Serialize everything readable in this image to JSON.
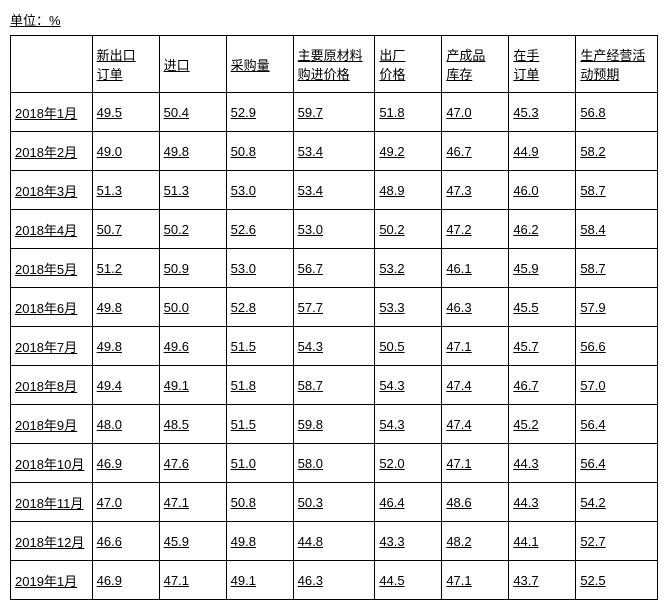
{
  "unit_label": "单位：%",
  "columns": [
    {
      "line1": "",
      "line2": ""
    },
    {
      "line1": "新出口",
      "line2": "订单"
    },
    {
      "line1": "进口",
      "line2": ""
    },
    {
      "line1": "采购量",
      "line2": ""
    },
    {
      "line1": "主要原材料",
      "line2": "购进价格"
    },
    {
      "line1": "出厂",
      "line2": "价格"
    },
    {
      "line1": "产成品",
      "line2": "库存"
    },
    {
      "line1": "在手",
      "line2": "订单"
    },
    {
      "line1": "生产经营活",
      "line2": "动预期"
    }
  ],
  "rows": [
    {
      "label": "2018年1月",
      "values": [
        "49.5",
        "50.4",
        "52.9",
        "59.7",
        "51.8",
        "47.0",
        "45.3",
        "56.8"
      ]
    },
    {
      "label": "2018年2月",
      "values": [
        "49.0",
        "49.8",
        "50.8",
        "53.4",
        "49.2",
        "46.7",
        "44.9",
        "58.2"
      ]
    },
    {
      "label": "2018年3月",
      "values": [
        "51.3",
        "51.3",
        "53.0",
        "53.4",
        "48.9",
        "47.3",
        "46.0",
        "58.7"
      ]
    },
    {
      "label": "2018年4月",
      "values": [
        "50.7",
        "50.2",
        "52.6",
        "53.0",
        "50.2",
        "47.2",
        "46.2",
        "58.4"
      ]
    },
    {
      "label": "2018年5月",
      "values": [
        "51.2",
        "50.9",
        "53.0",
        "56.7",
        "53.2",
        "46.1",
        "45.9",
        "58.7"
      ]
    },
    {
      "label": "2018年6月",
      "values": [
        "49.8",
        "50.0",
        "52.8",
        "57.7",
        "53.3",
        "46.3",
        "45.5",
        "57.9"
      ]
    },
    {
      "label": "2018年7月",
      "values": [
        "49.8",
        "49.6",
        "51.5",
        "54.3",
        "50.5",
        "47.1",
        "45.7",
        "56.6"
      ]
    },
    {
      "label": "2018年8月",
      "values": [
        "49.4",
        "49.1",
        "51.8",
        "58.7",
        "54.3",
        "47.4",
        "46.7",
        "57.0"
      ]
    },
    {
      "label": "2018年9月",
      "values": [
        "48.0",
        "48.5",
        "51.5",
        "59.8",
        "54.3",
        "47.4",
        "45.2",
        "56.4"
      ]
    },
    {
      "label": "2018年10月",
      "values": [
        "46.9",
        "47.6",
        "51.0",
        "58.0",
        "52.0",
        "47.1",
        "44.3",
        "56.4"
      ]
    },
    {
      "label": "2018年11月",
      "values": [
        "47.0",
        "47.1",
        "50.8",
        "50.3",
        "46.4",
        "48.6",
        "44.3",
        "54.2"
      ]
    },
    {
      "label": "2018年12月",
      "values": [
        "46.6",
        "45.9",
        "49.8",
        "44.8",
        "43.3",
        "48.2",
        "44.1",
        "52.7"
      ]
    },
    {
      "label": "2019年1月",
      "values": [
        "46.9",
        "47.1",
        "49.1",
        "46.3",
        "44.5",
        "47.1",
        "43.7",
        "52.5"
      ]
    }
  ]
}
